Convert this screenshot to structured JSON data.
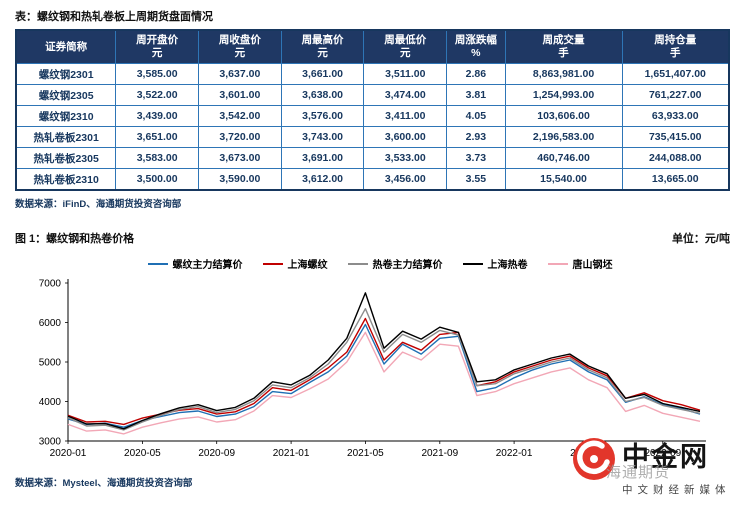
{
  "colors": {
    "header_bg": "#1F3864",
    "table_border": "#2E75B6",
    "table_text": "#17375E",
    "logo_red": "#E2362B"
  },
  "table_section": {
    "title": "表：螺纹钢和热轧卷板上周期货盘面情况",
    "columns": [
      {
        "l1": "证券简称",
        "l2": ""
      },
      {
        "l1": "周开盘价",
        "l2": "元"
      },
      {
        "l1": "周收盘价",
        "l2": "元"
      },
      {
        "l1": "周最高价",
        "l2": "元"
      },
      {
        "l1": "周最低价",
        "l2": "元"
      },
      {
        "l1": "周涨跌幅",
        "l2": "%"
      },
      {
        "l1": "周成交量",
        "l2": "手"
      },
      {
        "l1": "周持仓量",
        "l2": "手"
      }
    ],
    "rows": [
      {
        "name": "螺纹钢2301",
        "open": "3,585.00",
        "close": "3,637.00",
        "high": "3,661.00",
        "low": "3,511.00",
        "chg": "2.86",
        "vol": "8,863,981.00",
        "oi": "1,651,407.00"
      },
      {
        "name": "螺纹钢2305",
        "open": "3,522.00",
        "close": "3,601.00",
        "high": "3,638.00",
        "low": "3,474.00",
        "chg": "3.81",
        "vol": "1,254,993.00",
        "oi": "761,227.00"
      },
      {
        "name": "螺纹钢2310",
        "open": "3,439.00",
        "close": "3,542.00",
        "high": "3,576.00",
        "low": "3,411.00",
        "chg": "4.05",
        "vol": "103,606.00",
        "oi": "63,933.00"
      },
      {
        "name": "热轧卷板2301",
        "open": "3,651.00",
        "close": "3,720.00",
        "high": "3,743.00",
        "low": "3,600.00",
        "chg": "2.93",
        "vol": "2,196,583.00",
        "oi": "735,415.00"
      },
      {
        "name": "热轧卷板2305",
        "open": "3,583.00",
        "close": "3,673.00",
        "high": "3,691.00",
        "low": "3,533.00",
        "chg": "3.73",
        "vol": "460,746.00",
        "oi": "244,088.00"
      },
      {
        "name": "热轧卷板2310",
        "open": "3,500.00",
        "close": "3,590.00",
        "high": "3,612.00",
        "low": "3,456.00",
        "chg": "3.55",
        "vol": "15,540.00",
        "oi": "13,665.00"
      }
    ],
    "source": "数据来源：iFinD、海通期货投资咨询部"
  },
  "chart_section": {
    "title": "图 1：螺纹钢和热卷价格",
    "unit": "单位：元/吨",
    "source": "数据来源：Mysteel、海通期货投资咨询部"
  },
  "chart_data": {
    "type": "line",
    "title": "螺纹钢和热卷价格",
    "ylabel": "元/吨",
    "ylim": [
      3000,
      7000
    ],
    "yticks": [
      3000,
      4000,
      5000,
      6000,
      7000
    ],
    "x_tick_labels": [
      "2020-01",
      "2020-05",
      "2020-09",
      "2021-01",
      "2021-05",
      "2021-09",
      "2022-01",
      "2022-05",
      "2022-09"
    ],
    "x_tick_indices": [
      0,
      4,
      8,
      12,
      16,
      20,
      24,
      28,
      32
    ],
    "legend_position": "top",
    "grid": false,
    "series": [
      {
        "name": "螺纹主力结算价",
        "color": "#1F6FB4",
        "values": [
          3560,
          3420,
          3450,
          3350,
          3520,
          3620,
          3720,
          3760,
          3620,
          3680,
          3870,
          4250,
          4200,
          4480,
          4750,
          5150,
          5950,
          4950,
          5450,
          5200,
          5600,
          5650,
          4250,
          4350,
          4600,
          4800,
          4950,
          5050,
          4750,
          4550,
          3980,
          4120,
          3920,
          3820,
          3680
        ]
      },
      {
        "name": "上海螺纹",
        "color": "#C00000",
        "values": [
          3650,
          3480,
          3500,
          3420,
          3580,
          3680,
          3780,
          3820,
          3680,
          3740,
          3950,
          4350,
          4280,
          4550,
          4850,
          5250,
          6100,
          5050,
          5500,
          5300,
          5700,
          5750,
          4400,
          4500,
          4750,
          4900,
          5050,
          5150,
          4850,
          4650,
          4080,
          4220,
          4020,
          3920,
          3780
        ]
      },
      {
        "name": "热卷主力结算价",
        "color": "#8C8C8C",
        "values": [
          3590,
          3380,
          3400,
          3280,
          3480,
          3650,
          3800,
          3870,
          3720,
          3800,
          4020,
          4420,
          4350,
          4600,
          4950,
          5500,
          6350,
          5250,
          5700,
          5500,
          5800,
          5680,
          4400,
          4450,
          4700,
          4850,
          5000,
          5100,
          4800,
          4600,
          4000,
          4100,
          3900,
          3800,
          3700
        ]
      },
      {
        "name": "上海热卷",
        "color": "#000000",
        "values": [
          3630,
          3430,
          3440,
          3310,
          3520,
          3690,
          3840,
          3920,
          3770,
          3850,
          4080,
          4500,
          4420,
          4660,
          5050,
          5600,
          6750,
          5350,
          5780,
          5580,
          5880,
          5750,
          4500,
          4550,
          4800,
          4950,
          5100,
          5200,
          4900,
          4700,
          4080,
          4180,
          3950,
          3850,
          3750
        ]
      },
      {
        "name": "唐山钢坯",
        "color": "#F2A7B6",
        "values": [
          3420,
          3250,
          3280,
          3180,
          3350,
          3460,
          3560,
          3610,
          3480,
          3540,
          3760,
          4150,
          4100,
          4320,
          4570,
          5000,
          5750,
          4750,
          5250,
          5050,
          5450,
          5400,
          4150,
          4250,
          4450,
          4600,
          4750,
          4850,
          4550,
          4350,
          3750,
          3900,
          3700,
          3600,
          3500
        ]
      }
    ]
  },
  "branding": {
    "logo_text": "中金网",
    "watermark": "海通期货",
    "tagline": "中文财经新媒体"
  }
}
